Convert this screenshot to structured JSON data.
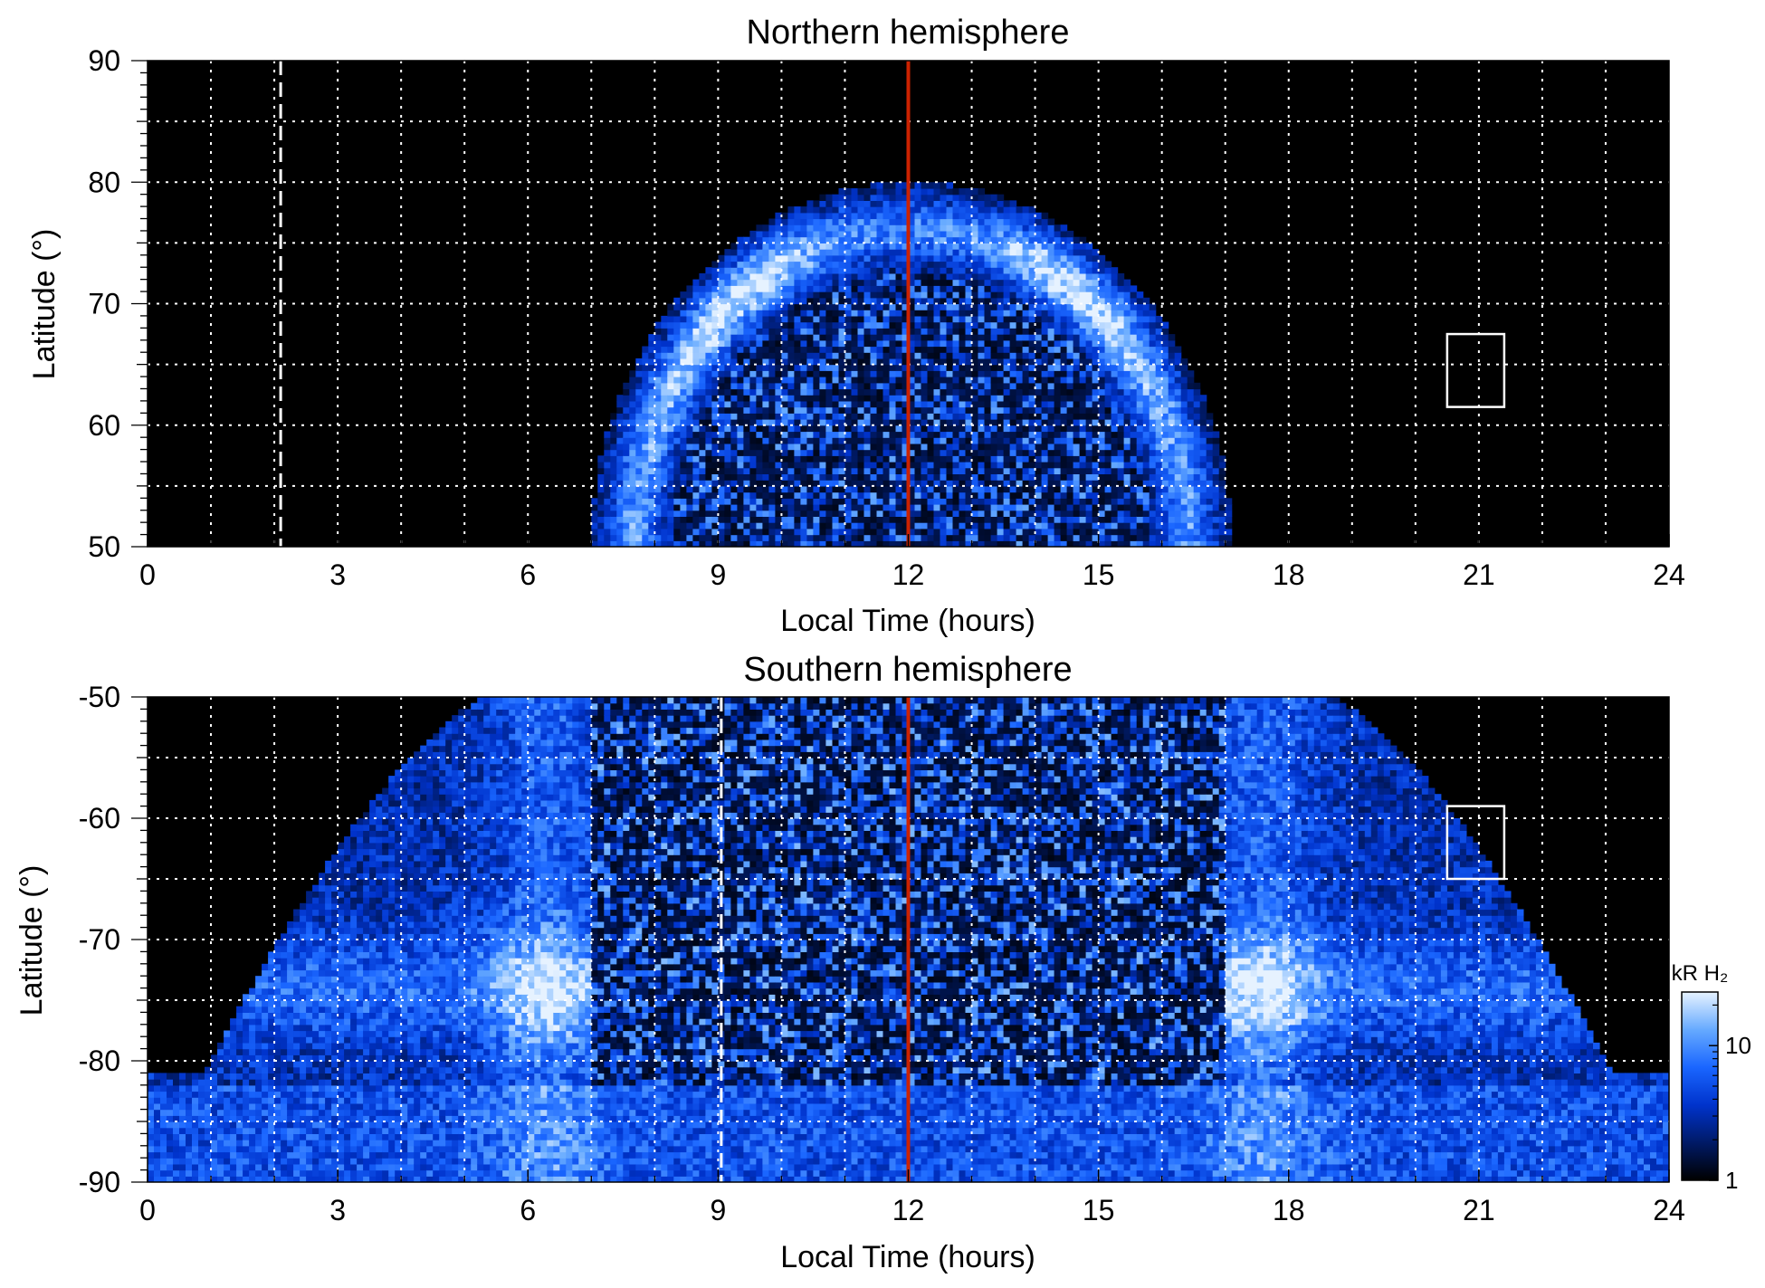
{
  "chart_data": [
    {
      "type": "heatmap",
      "title": "Northern hemisphere",
      "xlabel": "Local Time (hours)",
      "ylabel": "Latitude (°)",
      "xlim": [
        0,
        24
      ],
      "ylim": [
        50,
        90
      ],
      "xticks": [
        "0",
        "3",
        "6",
        "9",
        "12",
        "15",
        "18",
        "21",
        "24"
      ],
      "yticks": [
        "50",
        "60",
        "70",
        "80",
        "90"
      ],
      "grid": true,
      "noon_line_lt": 12,
      "noon_line_color": "#cc2200",
      "dashed_line_lt": 2.1,
      "emission_extent": {
        "lt_min": 7.0,
        "lt_max": 17.1,
        "lat_min": 50,
        "lat_max": 80
      },
      "auroral_oval": {
        "lat_center": 70,
        "lat_width": 7,
        "peak_lt": [
          9.3,
          14.7
        ]
      },
      "inner_region_lat_max": 66,
      "marker_box": {
        "lt": [
          20.5,
          21.4
        ],
        "lat": [
          61.5,
          67.5
        ]
      }
    },
    {
      "type": "heatmap",
      "title": "Southern hemisphere",
      "xlabel": "Local Time (hours)",
      "ylabel": "Latitude (°)",
      "xlim": [
        0,
        24
      ],
      "ylim": [
        -90,
        -50
      ],
      "xticks": [
        "0",
        "3",
        "6",
        "9",
        "12",
        "15",
        "18",
        "21",
        "24"
      ],
      "yticks": [
        "-90",
        "-80",
        "-70",
        "-60",
        "-50"
      ],
      "grid": true,
      "noon_line_lt": 12,
      "noon_line_color": "#cc2200",
      "dashed_line_lt": 9.05,
      "emission_extent": {
        "lt_min": 0,
        "lt_max": 24,
        "lat_min": -90,
        "lat_max": -50
      },
      "auroral_oval": {
        "lat_center": -74,
        "lat_width": 5,
        "peak_lt": [
          6.3,
          17.6
        ]
      },
      "inner_region_lt": [
        7,
        17
      ],
      "marker_box": {
        "lt": [
          20.5,
          21.4
        ],
        "lat": [
          -65,
          -59
        ]
      }
    }
  ],
  "colorbar": {
    "label": "kR H₂",
    "ticks": [
      "1",
      "10"
    ],
    "range": [
      1,
      25
    ],
    "scale": "log",
    "colors": [
      "#000000",
      "#001a66",
      "#0033cc",
      "#1a66ff",
      "#66aaff",
      "#e6f2ff"
    ]
  }
}
